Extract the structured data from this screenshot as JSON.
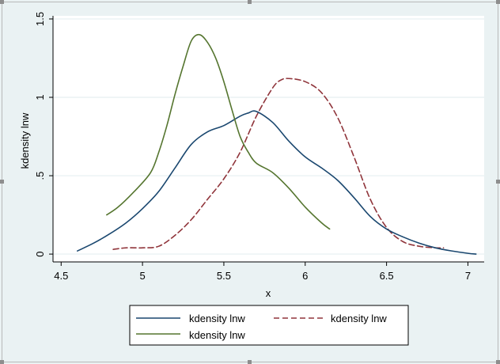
{
  "chart_data": {
    "type": "line",
    "title": "",
    "xlabel": "x",
    "ylabel": "kdensity lnw",
    "xlim": [
      4.45,
      7.1
    ],
    "ylim": [
      -0.05,
      1.52
    ],
    "xticks": [
      4.5,
      5,
      5.5,
      6,
      6.5,
      7
    ],
    "xtick_labels": [
      "4.5",
      "5",
      "5.5",
      "6",
      "6.5",
      "7"
    ],
    "yticks": [
      0,
      0.5,
      1,
      1.5
    ],
    "ytick_labels": [
      "0",
      ".5",
      "1",
      "1.5"
    ],
    "grid": true,
    "legend_position": "bottom",
    "series": [
      {
        "name": "kdensity lnw",
        "color": "#1a476f",
        "dash": "solid",
        "x": [
          4.6,
          4.7,
          4.8,
          4.9,
          5.0,
          5.1,
          5.2,
          5.3,
          5.4,
          5.5,
          5.6,
          5.65,
          5.7,
          5.8,
          5.9,
          6.0,
          6.1,
          6.2,
          6.3,
          6.4,
          6.5,
          6.6,
          6.7,
          6.8,
          6.9,
          7.0,
          7.05
        ],
        "values": [
          0.02,
          0.07,
          0.13,
          0.2,
          0.29,
          0.4,
          0.55,
          0.7,
          0.78,
          0.82,
          0.88,
          0.9,
          0.91,
          0.84,
          0.72,
          0.62,
          0.55,
          0.47,
          0.36,
          0.24,
          0.16,
          0.11,
          0.07,
          0.04,
          0.02,
          0.005,
          0.0
        ]
      },
      {
        "name": "kdensity lnw",
        "color": "#90353b",
        "dash": "dashed",
        "x": [
          4.82,
          4.9,
          5.0,
          5.1,
          5.2,
          5.3,
          5.4,
          5.5,
          5.6,
          5.7,
          5.8,
          5.85,
          5.9,
          6.0,
          6.1,
          6.2,
          6.3,
          6.4,
          6.5,
          6.6,
          6.7,
          6.8,
          6.85
        ],
        "values": [
          0.03,
          0.04,
          0.04,
          0.05,
          0.12,
          0.22,
          0.35,
          0.48,
          0.65,
          0.88,
          1.06,
          1.11,
          1.12,
          1.1,
          1.03,
          0.87,
          0.62,
          0.35,
          0.17,
          0.08,
          0.05,
          0.04,
          0.04
        ]
      },
      {
        "name": "kdensity lnw",
        "color": "#55752f",
        "dash": "solid",
        "x": [
          4.78,
          4.85,
          4.95,
          5.05,
          5.1,
          5.15,
          5.2,
          5.25,
          5.3,
          5.35,
          5.4,
          5.45,
          5.5,
          5.55,
          5.6,
          5.65,
          5.7,
          5.8,
          5.9,
          6.0,
          6.1,
          6.15
        ],
        "values": [
          0.25,
          0.3,
          0.4,
          0.52,
          0.65,
          0.82,
          1.02,
          1.2,
          1.36,
          1.4,
          1.35,
          1.25,
          1.1,
          0.92,
          0.75,
          0.65,
          0.58,
          0.52,
          0.42,
          0.3,
          0.2,
          0.16
        ]
      }
    ]
  }
}
